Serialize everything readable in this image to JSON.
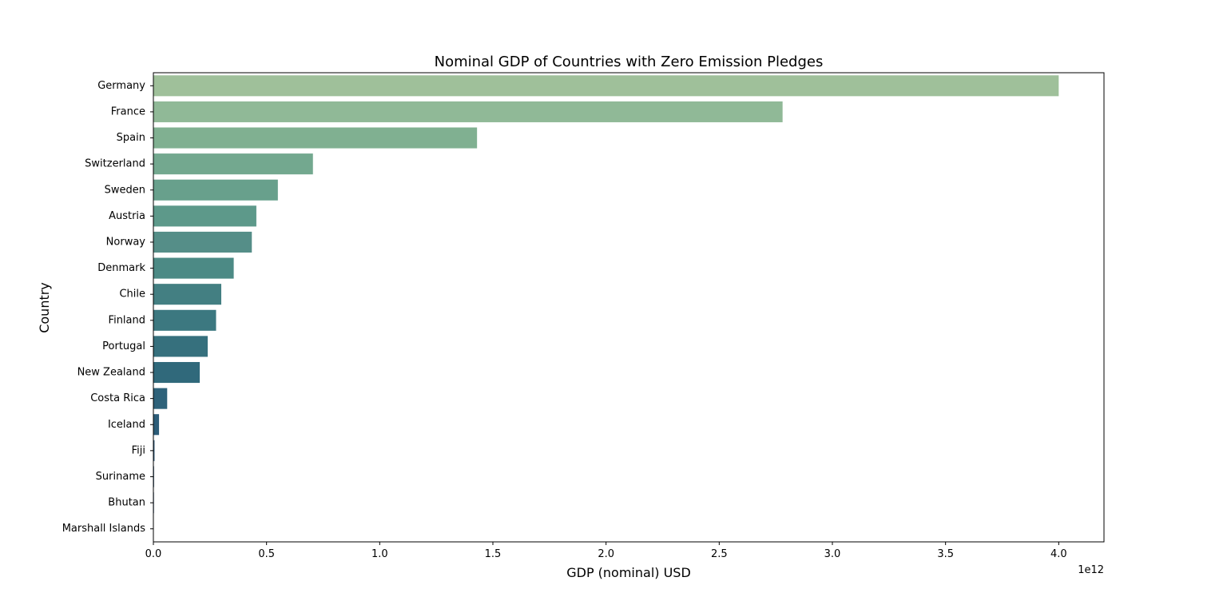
{
  "chart_data": {
    "type": "bar",
    "orientation": "horizontal",
    "title": "Nominal GDP of Countries with Zero Emission Pledges",
    "xlabel": "GDP (nominal) USD",
    "ylabel": "Country",
    "x_offset_label": "1e12",
    "x_scale_factor": 1000000000000,
    "xlim": [
      0,
      4200000000000
    ],
    "x_ticks": [
      0,
      0.5,
      1.0,
      1.5,
      2.0,
      2.5,
      3.0,
      3.5,
      4.0
    ],
    "x_tick_labels": [
      "0.0",
      "0.5",
      "1.0",
      "1.5",
      "2.0",
      "2.5",
      "3.0",
      "3.5",
      "4.0"
    ],
    "grid": false,
    "categories": [
      "Germany",
      "France",
      "Spain",
      "Switzerland",
      "Sweden",
      "Austria",
      "Norway",
      "Denmark",
      "Chile",
      "Finland",
      "Portugal",
      "New Zealand",
      "Costa Rica",
      "Iceland",
      "Fiji",
      "Suriname",
      "Bhutan",
      "Marshall Islands"
    ],
    "values": [
      4000000000000,
      2780000000000,
      1430000000000,
      705000000000,
      550000000000,
      455000000000,
      435000000000,
      355000000000,
      300000000000,
      277000000000,
      240000000000,
      205000000000,
      61000000000,
      25000000000,
      5000000000,
      3000000000,
      2500000000,
      250000000
    ],
    "colors": [
      "#9fc09a",
      "#90b997",
      "#80b091",
      "#73a88f",
      "#68a08c",
      "#5d998a",
      "#558e88",
      "#4c8a85",
      "#437f82",
      "#3c7880",
      "#36707d",
      "#30697b",
      "#2e627a",
      "#2c5c78",
      "#2a5576",
      "#284f73",
      "#274b71",
      "#25456e"
    ]
  }
}
